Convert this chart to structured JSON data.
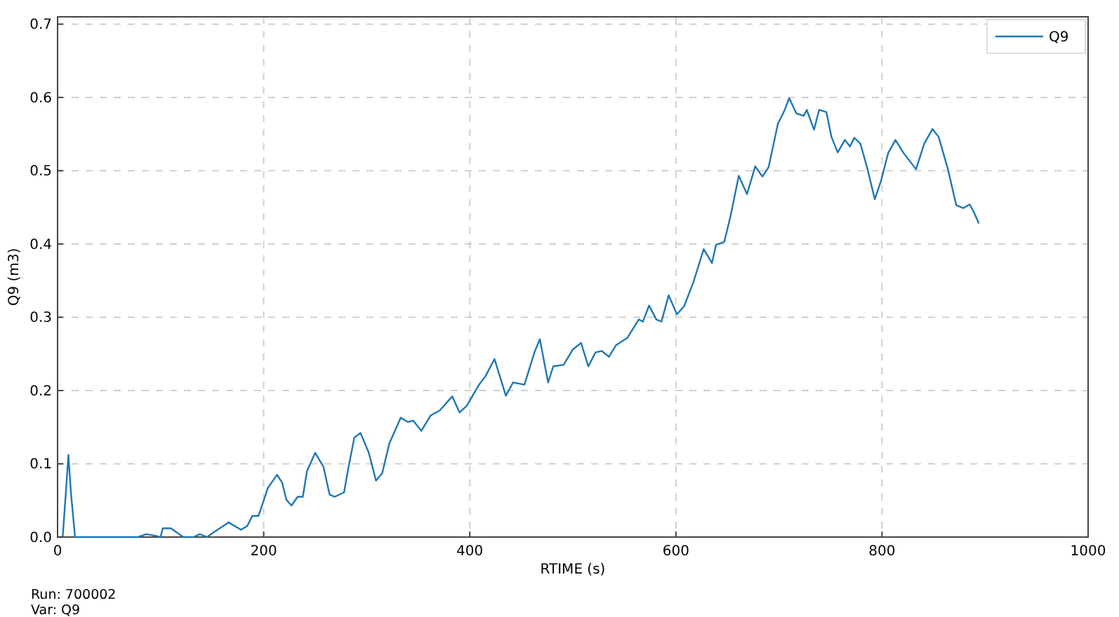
{
  "chart_data": {
    "type": "line",
    "xlabel": "RTIME (s)",
    "ylabel": "Q9 (m3)",
    "annotations": [
      "Run: 700002",
      "Var: Q9"
    ],
    "xlim": [
      0,
      1000
    ],
    "xticks": [
      0,
      200,
      400,
      600,
      800,
      1000
    ],
    "ylim": [
      0,
      0.71
    ],
    "yticks": [
      {
        "value": 0,
        "label": "0.0"
      },
      0.1,
      0.2,
      0.3,
      0.4,
      0.5,
      0.6,
      0.7
    ],
    "grid": true,
    "legend": "top right",
    "series": [
      {
        "name": "Q9",
        "color": "#1f77b4",
        "x": [
          0,
          5,
          8,
          10.5,
          13,
          17,
          40,
          78,
          86,
          94,
          100,
          102,
          110,
          122,
          132,
          138,
          145,
          150,
          166,
          178,
          184,
          189,
          195,
          202,
          204,
          213,
          218,
          222,
          227,
          233,
          238,
          242,
          250,
          258,
          264,
          269,
          278,
          282,
          288,
          294,
          302,
          309,
          315,
          322,
          333,
          340,
          345,
          353,
          362,
          371,
          383,
          390,
          397,
          409,
          415,
          424,
          435,
          442,
          453,
          463,
          468,
          476,
          481,
          491,
          500,
          508,
          515,
          522,
          528,
          535,
          542,
          553,
          564,
          568,
          574,
          581,
          586,
          593,
          601,
          608,
          617,
          627,
          635,
          639,
          647,
          653,
          661,
          669,
          677,
          684,
          690,
          699,
          705,
          710,
          717,
          724,
          727,
          734,
          739,
          746,
          751,
          757,
          764,
          769,
          773,
          779,
          786,
          793,
          799,
          806,
          813,
          821,
          833,
          841,
          849,
          855,
          864,
          872,
          879,
          885,
          889,
          894
        ],
        "values": [
          0,
          0,
          0.06,
          0.112,
          0.06,
          0,
          0,
          0,
          0.004,
          0.002,
          0,
          0.012,
          0.012,
          0,
          0,
          0.004,
          0,
          0.005,
          0.02,
          0.01,
          0.015,
          0.029,
          0.029,
          0.058,
          0.067,
          0.085,
          0.074,
          0.051,
          0.043,
          0.055,
          0.055,
          0.09,
          0.115,
          0.096,
          0.058,
          0.055,
          0.061,
          0.093,
          0.136,
          0.142,
          0.115,
          0.077,
          0.087,
          0.128,
          0.163,
          0.157,
          0.159,
          0.145,
          0.166,
          0.173,
          0.192,
          0.17,
          0.179,
          0.208,
          0.219,
          0.243,
          0.193,
          0.211,
          0.208,
          0.253,
          0.27,
          0.211,
          0.233,
          0.235,
          0.256,
          0.265,
          0.233,
          0.252,
          0.254,
          0.246,
          0.262,
          0.272,
          0.297,
          0.294,
          0.316,
          0.297,
          0.294,
          0.33,
          0.304,
          0.315,
          0.348,
          0.393,
          0.374,
          0.399,
          0.403,
          0.438,
          0.493,
          0.468,
          0.506,
          0.492,
          0.505,
          0.564,
          0.581,
          0.599,
          0.578,
          0.575,
          0.583,
          0.556,
          0.583,
          0.58,
          0.546,
          0.525,
          0.542,
          0.533,
          0.545,
          0.537,
          0.502,
          0.461,
          0.486,
          0.524,
          0.542,
          0.524,
          0.502,
          0.537,
          0.557,
          0.546,
          0.502,
          0.453,
          0.449,
          0.454,
          0.444,
          0.428
        ]
      }
    ]
  }
}
